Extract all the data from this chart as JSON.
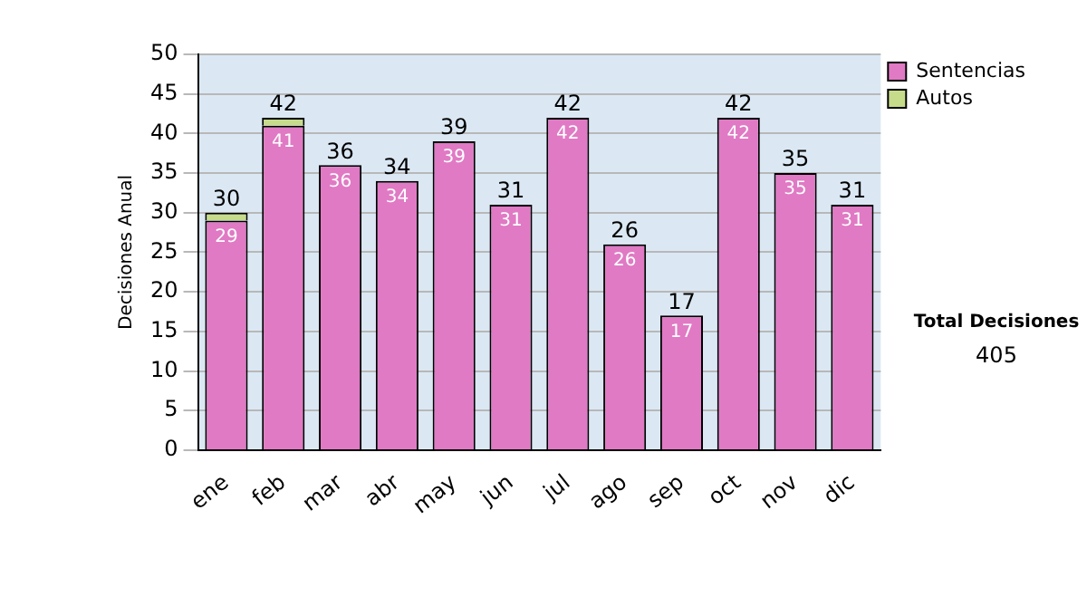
{
  "chart_data": {
    "type": "bar",
    "stacked": true,
    "ylabel": "Decisiones Anual",
    "categories": [
      "ene",
      "feb",
      "mar",
      "abr",
      "may",
      "jun",
      "jul",
      "ago",
      "sep",
      "oct",
      "nov",
      "dic"
    ],
    "series": [
      {
        "name": "Sentencias",
        "color": "#e07ac4",
        "values": [
          29,
          41,
          36,
          34,
          39,
          31,
          42,
          26,
          17,
          42,
          35,
          31
        ],
        "value_labels": [
          "29",
          "41",
          "36",
          "34",
          "39",
          "31",
          "42",
          "26",
          "17",
          "42",
          "35",
          "31"
        ]
      },
      {
        "name": "Autos",
        "color": "#c6dc8a",
        "values": [
          1,
          1,
          0,
          0,
          0,
          0,
          0,
          0,
          0,
          0,
          0,
          0
        ]
      }
    ],
    "totals": [
      "30",
      "42",
      "36",
      "34",
      "39",
      "31",
      "42",
      "26",
      "17",
      "42",
      "35",
      "31"
    ],
    "ylim": [
      0,
      50
    ],
    "yticks": [
      0,
      5,
      10,
      15,
      20,
      25,
      30,
      35,
      40,
      45,
      50
    ],
    "grid": "y",
    "legend": "right",
    "annotations": [
      "Total Decisiones",
      "405"
    ]
  }
}
